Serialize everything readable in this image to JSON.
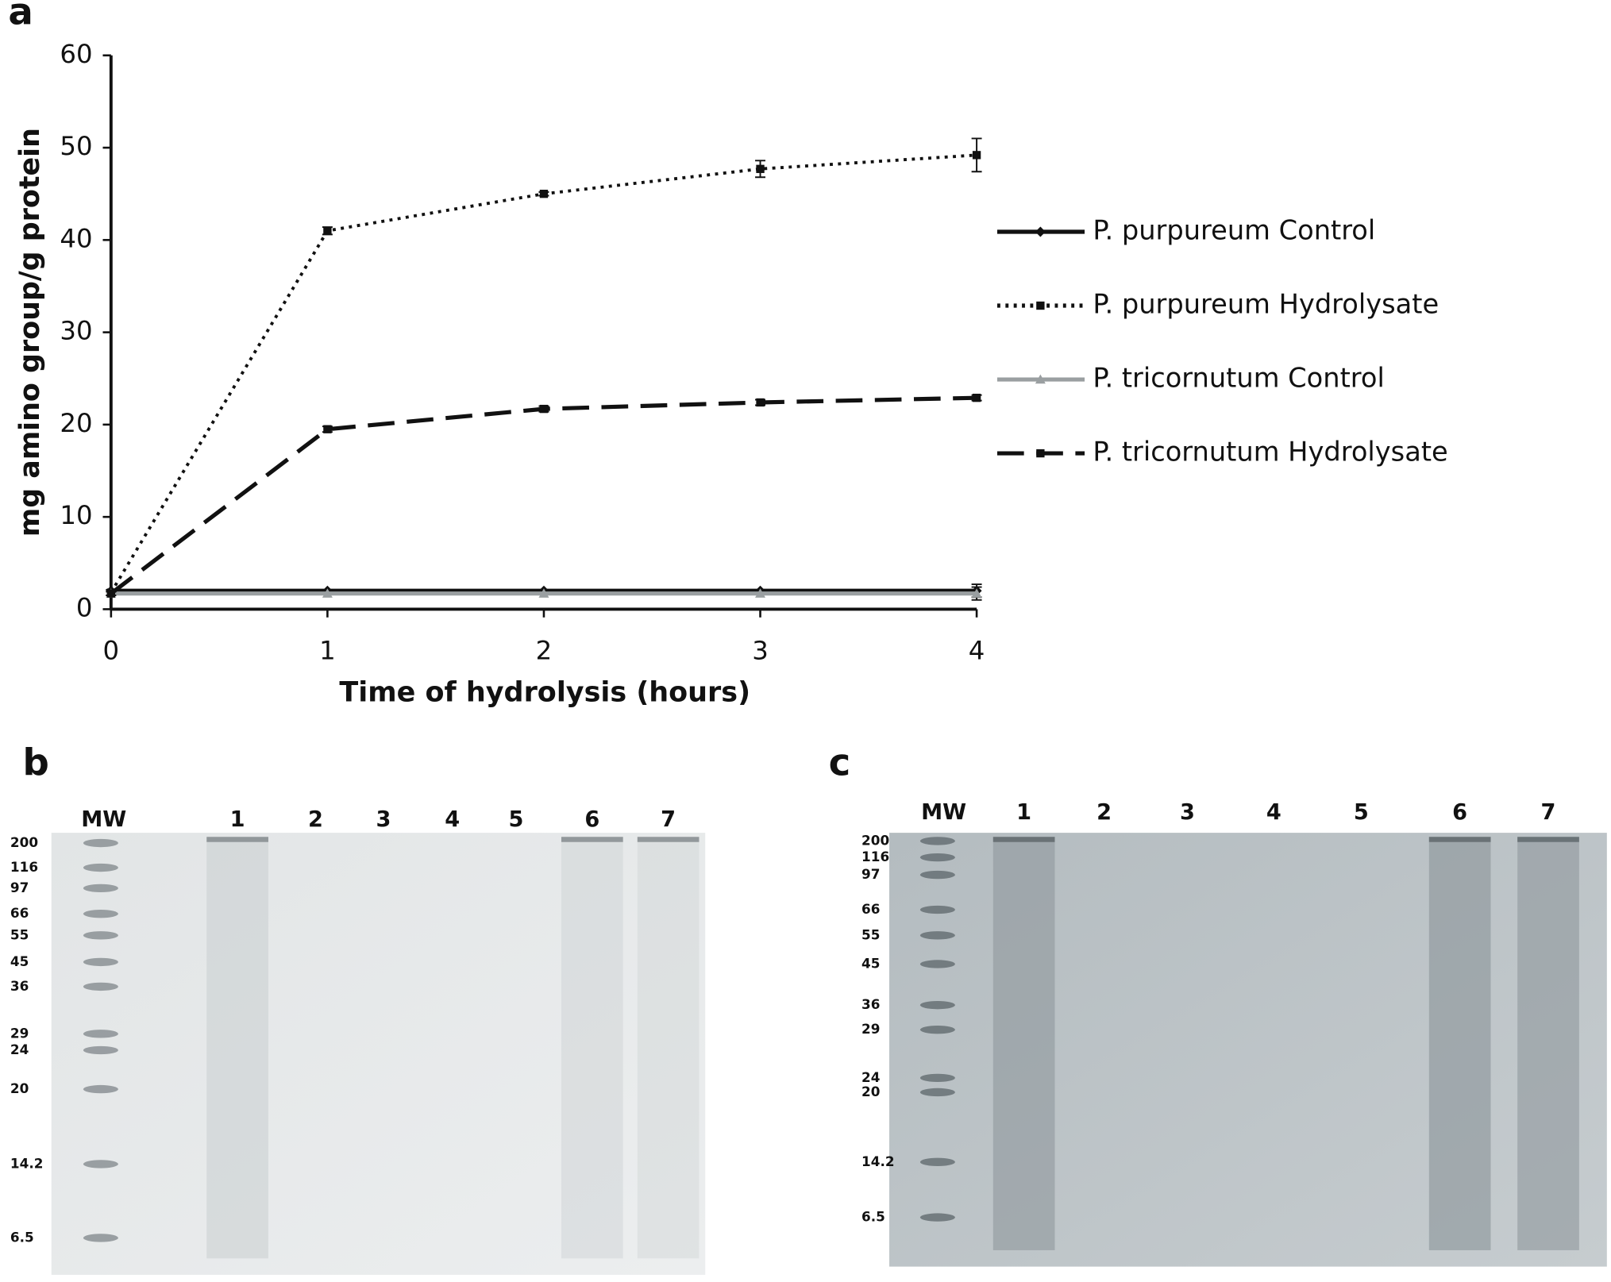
{
  "chart_data": {
    "type": "line",
    "panel_label": "a",
    "x_label": "Time of hydrolysis (hours)",
    "y_label": "mg amino group/g protein",
    "x": [
      0,
      1,
      2,
      3,
      4
    ],
    "xlim": [
      0,
      4
    ],
    "xticks": [
      0,
      1,
      2,
      3,
      4
    ],
    "ylim": [
      0,
      60
    ],
    "yticks": [
      0,
      10,
      20,
      30,
      40,
      50,
      60
    ],
    "legend": "right",
    "series": [
      {
        "name": "P. purpureum Control",
        "color": "#111111",
        "dash": "solid",
        "marker": "diamond",
        "values": [
          2.0,
          2.0,
          2.0,
          2.0,
          2.0
        ],
        "errors": [
          0,
          0,
          0,
          0,
          0.7
        ]
      },
      {
        "name": "P. purpureum Hydrolysate",
        "color": "#111111",
        "dash": "dotted",
        "marker": "square",
        "values": [
          1.8,
          41.0,
          45.0,
          47.7,
          49.2
        ],
        "errors": [
          0.3,
          0.4,
          0.2,
          0.9,
          1.8
        ]
      },
      {
        "name": "P. tricornutum Control",
        "color": "#9a9fa1",
        "dash": "solid",
        "marker": "triangle",
        "values": [
          1.7,
          1.7,
          1.7,
          1.7,
          1.7
        ],
        "errors": [
          0,
          0,
          0,
          0,
          0.7
        ]
      },
      {
        "name": "P. tricornutum Hydrolysate",
        "color": "#111111",
        "dash": "dashed",
        "marker": "square",
        "values": [
          1.7,
          19.5,
          21.7,
          22.4,
          22.9
        ],
        "errors": [
          0.2,
          0.3,
          0.3,
          0.3,
          0.3
        ]
      }
    ]
  },
  "gels": [
    {
      "panel_label": "b",
      "lane_labels": [
        "MW",
        "1",
        "2",
        "3",
        "4",
        "5",
        "6",
        "7"
      ],
      "marker_labels": [
        "200",
        "116",
        "97",
        "66",
        "55",
        "45",
        "36",
        "29",
        "24",
        "20",
        "14.2",
        "6.5"
      ]
    },
    {
      "panel_label": "c",
      "lane_labels": [
        "MW",
        "1",
        "2",
        "3",
        "4",
        "5",
        "6",
        "7"
      ],
      "marker_labels": [
        "200",
        "116",
        "97",
        "66",
        "55",
        "45",
        "36",
        "29",
        "24",
        "20",
        "14.2",
        "6.5"
      ]
    }
  ]
}
